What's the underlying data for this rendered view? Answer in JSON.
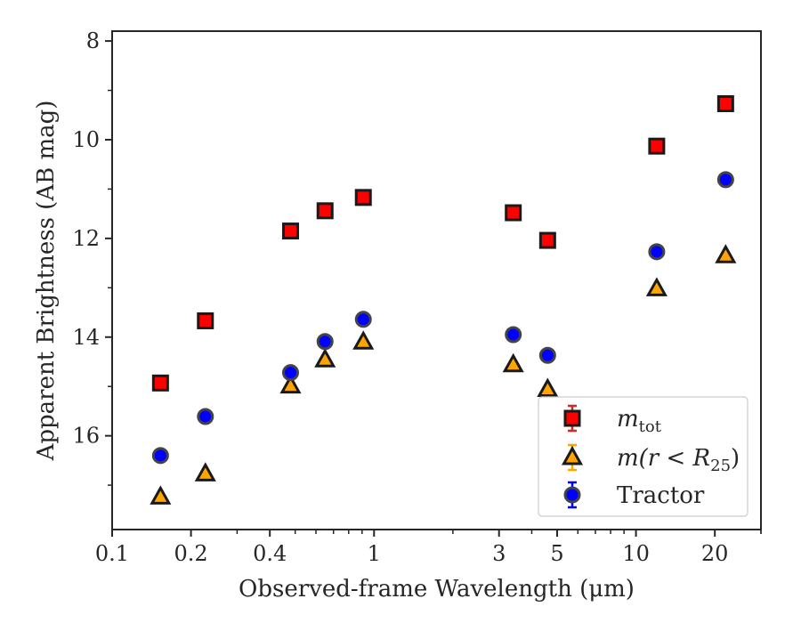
{
  "chart_data": {
    "type": "scatter",
    "xscale": "log",
    "xlim": [
      0.1,
      30
    ],
    "ylim": [
      17.9,
      7.8
    ],
    "y_inverted": true,
    "xlabel": "Observed-frame Wavelength (μm)",
    "ylabel": "Apparent Brightness (AB mag)",
    "xtick_values": [
      0.1,
      0.2,
      0.4,
      1,
      3,
      5,
      10,
      20
    ],
    "xtick_labels": [
      "0.1",
      "0.2",
      "0.4",
      "1",
      "3",
      "5",
      "10",
      "20"
    ],
    "ytick_values": [
      8,
      10,
      12,
      14,
      16
    ],
    "ytick_labels": [
      "8",
      "10",
      "12",
      "14",
      "16"
    ],
    "legend_position": "lower-right",
    "series": [
      {
        "name": "m_tot",
        "marker": "square",
        "fill": "#ff0000",
        "edge": "#1a1a1a",
        "errcolor": "#d62728",
        "x": [
          0.153,
          0.227,
          0.48,
          0.65,
          0.91,
          3.4,
          4.6,
          12.0,
          22.0
        ],
        "y": [
          14.93,
          13.67,
          11.85,
          11.44,
          11.17,
          11.48,
          12.04,
          10.13,
          9.27
        ]
      },
      {
        "name": "m(r < R25)",
        "marker": "triangle",
        "fill": "#ffa500",
        "edge": "#1a1a1a",
        "errcolor": "#ffa500",
        "x": [
          0.153,
          0.227,
          0.48,
          0.65,
          0.91,
          3.4,
          4.6,
          12.0,
          22.0
        ],
        "y": [
          17.24,
          16.77,
          14.99,
          14.46,
          14.1,
          14.56,
          15.06,
          13.02,
          12.35
        ]
      },
      {
        "name": "Tractor",
        "marker": "circle",
        "fill": "#0000ff",
        "edge": "#444444",
        "errcolor": "#0000ff",
        "x": [
          0.153,
          0.227,
          0.48,
          0.65,
          0.91,
          3.4,
          4.6,
          12.0,
          22.0
        ],
        "y": [
          16.4,
          15.61,
          14.72,
          14.09,
          13.64,
          13.95,
          14.37,
          12.27,
          10.81
        ]
      }
    ],
    "legend": {
      "entries": [
        {
          "label_base": "m",
          "label_sub": "tot"
        },
        {
          "label_pre": "m(r < R",
          "label_sub": "25",
          "label_post": ")"
        },
        {
          "label_plain": "Tractor"
        }
      ]
    }
  }
}
